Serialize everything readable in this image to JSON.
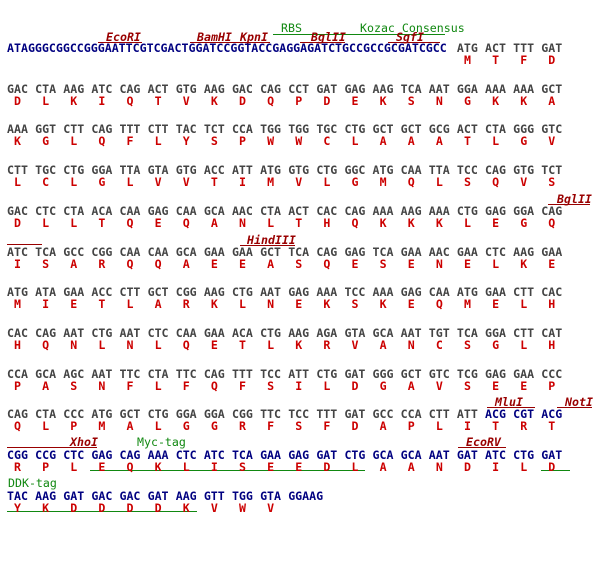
{
  "rows": [
    {
      "leader": "ATAGGGCGGCCGGGAATTCGTCGACTGGATCCGGTACCGAGGAGATCTGCCGCCGCGATCGCC",
      "codons": [
        "ATG",
        "ACT",
        "TTT",
        "GAT"
      ],
      "aa": [
        "M",
        "T",
        "F",
        "D"
      ]
    },
    {
      "codons": [
        "GAC",
        "CTA",
        "AAG",
        "ATC",
        "CAG",
        "ACT",
        "GTG",
        "AAG",
        "GAC",
        "CAG",
        "CCT",
        "GAT",
        "GAG",
        "AAG",
        "TCA",
        "AAT",
        "GGA",
        "AAA",
        "AAA",
        "GCT"
      ],
      "aa": [
        "D",
        "L",
        "K",
        "I",
        "Q",
        "T",
        "V",
        "K",
        "D",
        "Q",
        "P",
        "D",
        "E",
        "K",
        "S",
        "N",
        "G",
        "K",
        "K",
        "A"
      ]
    },
    {
      "codons": [
        "AAA",
        "GGT",
        "CTT",
        "CAG",
        "TTT",
        "CTT",
        "TAC",
        "TCT",
        "CCA",
        "TGG",
        "TGG",
        "TGC",
        "CTG",
        "GCT",
        "GCT",
        "GCG",
        "ACT",
        "CTA",
        "GGG",
        "GTC"
      ],
      "aa": [
        "K",
        "G",
        "L",
        "Q",
        "F",
        "L",
        "Y",
        "S",
        "P",
        "W",
        "W",
        "C",
        "L",
        "A",
        "A",
        "A",
        "T",
        "L",
        "G",
        "V"
      ]
    },
    {
      "codons": [
        "CTT",
        "TGC",
        "CTG",
        "GGA",
        "TTA",
        "GTA",
        "GTG",
        "ACC",
        "ATT",
        "ATG",
        "GTG",
        "CTG",
        "GGC",
        "ATG",
        "CAA",
        "TTA",
        "TCC",
        "CAG",
        "GTG",
        "TCT"
      ],
      "aa": [
        "L",
        "C",
        "L",
        "G",
        "L",
        "V",
        "V",
        "T",
        "I",
        "M",
        "V",
        "L",
        "G",
        "M",
        "Q",
        "L",
        "S",
        "Q",
        "V",
        "S"
      ]
    },
    {
      "codons": [
        "GAC",
        "CTC",
        "CTA",
        "ACA",
        "CAA",
        "GAG",
        "CAA",
        "GCA",
        "AAC",
        "CTA",
        "ACT",
        "CAC",
        "CAG",
        "AAA",
        "AAG",
        "AAA",
        "CTG",
        "GAG",
        "GGA",
        "CAG"
      ],
      "aa": [
        "D",
        "L",
        "L",
        "T",
        "Q",
        "E",
        "Q",
        "A",
        "N",
        "L",
        "T",
        "H",
        "Q",
        "K",
        "K",
        "K",
        "L",
        "E",
        "G",
        "Q"
      ]
    },
    {
      "codons": [
        "ATC",
        "TCA",
        "GCC",
        "CGG",
        "CAA",
        "CAA",
        "GCA",
        "GAA",
        "GAA",
        "GCT",
        "TCA",
        "CAG",
        "GAG",
        "TCA",
        "GAA",
        "AAC",
        "GAA",
        "CTC",
        "AAG",
        "GAA"
      ],
      "aa": [
        "I",
        "S",
        "A",
        "R",
        "Q",
        "Q",
        "A",
        "E",
        "E",
        "A",
        "S",
        "Q",
        "E",
        "S",
        "E",
        "N",
        "E",
        "L",
        "K",
        "E"
      ]
    },
    {
      "codons": [
        "ATG",
        "ATA",
        "GAA",
        "ACC",
        "CTT",
        "GCT",
        "CGG",
        "AAG",
        "CTG",
        "AAT",
        "GAG",
        "AAA",
        "TCC",
        "AAA",
        "GAG",
        "CAA",
        "ATG",
        "GAA",
        "CTT",
        "CAC"
      ],
      "aa": [
        "M",
        "I",
        "E",
        "T",
        "L",
        "A",
        "R",
        "K",
        "L",
        "N",
        "E",
        "K",
        "S",
        "K",
        "E",
        "Q",
        "M",
        "E",
        "L",
        "H"
      ]
    },
    {
      "codons": [
        "CAC",
        "CAG",
        "AAT",
        "CTG",
        "AAT",
        "CTC",
        "CAA",
        "GAA",
        "ACA",
        "CTG",
        "AAG",
        "AGA",
        "GTA",
        "GCA",
        "AAT",
        "TGT",
        "TCA",
        "GGA",
        "CTT",
        "CAT"
      ],
      "aa": [
        "H",
        "Q",
        "N",
        "L",
        "N",
        "L",
        "Q",
        "E",
        "T",
        "L",
        "K",
        "R",
        "V",
        "A",
        "N",
        "C",
        "S",
        "G",
        "L",
        "H"
      ]
    },
    {
      "codons": [
        "CCA",
        "GCA",
        "AGC",
        "AAT",
        "TTC",
        "CTA",
        "TTC",
        "CAG",
        "TTT",
        "TCC",
        "ATT",
        "CTG",
        "GAT",
        "GGG",
        "GCT",
        "GTC",
        "TCG",
        "GAG",
        "GAA",
        "CCC"
      ],
      "aa": [
        "P",
        "A",
        "S",
        "N",
        "F",
        "L",
        "F",
        "Q",
        "F",
        "S",
        "I",
        "L",
        "D",
        "G",
        "A",
        "V",
        "S",
        "E",
        "E",
        "P"
      ]
    },
    {
      "codons": [
        "CAG",
        "CTA",
        "CCC",
        "ATG",
        "GCT",
        "CTG",
        "GGA",
        "GGA",
        "CGG",
        "TTC",
        "TCC",
        "TTT",
        "GAT",
        "GCC",
        "CCA",
        "CTT",
        "ATT"
      ],
      "vector_codons": [
        "ACG",
        "CGT",
        "ACG"
      ],
      "aa": [
        "Q",
        "L",
        "P",
        "M",
        "A",
        "L",
        "G",
        "G",
        "R",
        "F",
        "S",
        "F",
        "D",
        "A",
        "P",
        "L",
        "I",
        "T",
        "R",
        "T"
      ]
    },
    {
      "vector_codons": [
        "CGG",
        "CCG",
        "CTC",
        "GAG",
        "CAG",
        "AAA",
        "CTC",
        "ATC",
        "TCA",
        "GAA",
        "GAG",
        "GAT",
        "CTG",
        "GCA",
        "GCA",
        "AAT",
        "GAT",
        "ATC",
        "CTG",
        "GAT"
      ],
      "aa": [
        "R",
        "P",
        "L",
        "E",
        "Q",
        "K",
        "L",
        "I",
        "S",
        "E",
        "E",
        "D",
        "L",
        "A",
        "A",
        "N",
        "D",
        "I",
        "L",
        "D"
      ]
    },
    {
      "vector_codons": [
        "TAC",
        "AAG",
        "GAT",
        "GAC",
        "GAC",
        "GAT",
        "AAG",
        "GTT",
        "TGG",
        "GTA",
        "GGAAG"
      ],
      "aa": [
        "Y",
        "K",
        "D",
        "D",
        "D",
        "D",
        "K",
        "V",
        "W",
        "V"
      ]
    }
  ],
  "annotations": [
    {
      "label": "RBS",
      "kind": "feature"
    },
    {
      "label": "Kozac Consensus",
      "kind": "feature"
    },
    {
      "label": "EcoRI",
      "kind": "site"
    },
    {
      "label": "BamHI",
      "kind": "site"
    },
    {
      "label": "KpnI",
      "kind": "site"
    },
    {
      "label": "BglII",
      "kind": "site"
    },
    {
      "label": "SgfI",
      "kind": "site"
    },
    {
      "label": "BglII",
      "kind": "site"
    },
    {
      "label": "HindIII",
      "kind": "site"
    },
    {
      "label": "MluI",
      "kind": "site"
    },
    {
      "label": "NotI",
      "kind": "site"
    },
    {
      "label": "XhoI",
      "kind": "site"
    },
    {
      "label": "Myc-tag",
      "kind": "feature"
    },
    {
      "label": "EcoRV",
      "kind": "site"
    },
    {
      "label": "DDK-tag",
      "kind": "feature"
    }
  ]
}
